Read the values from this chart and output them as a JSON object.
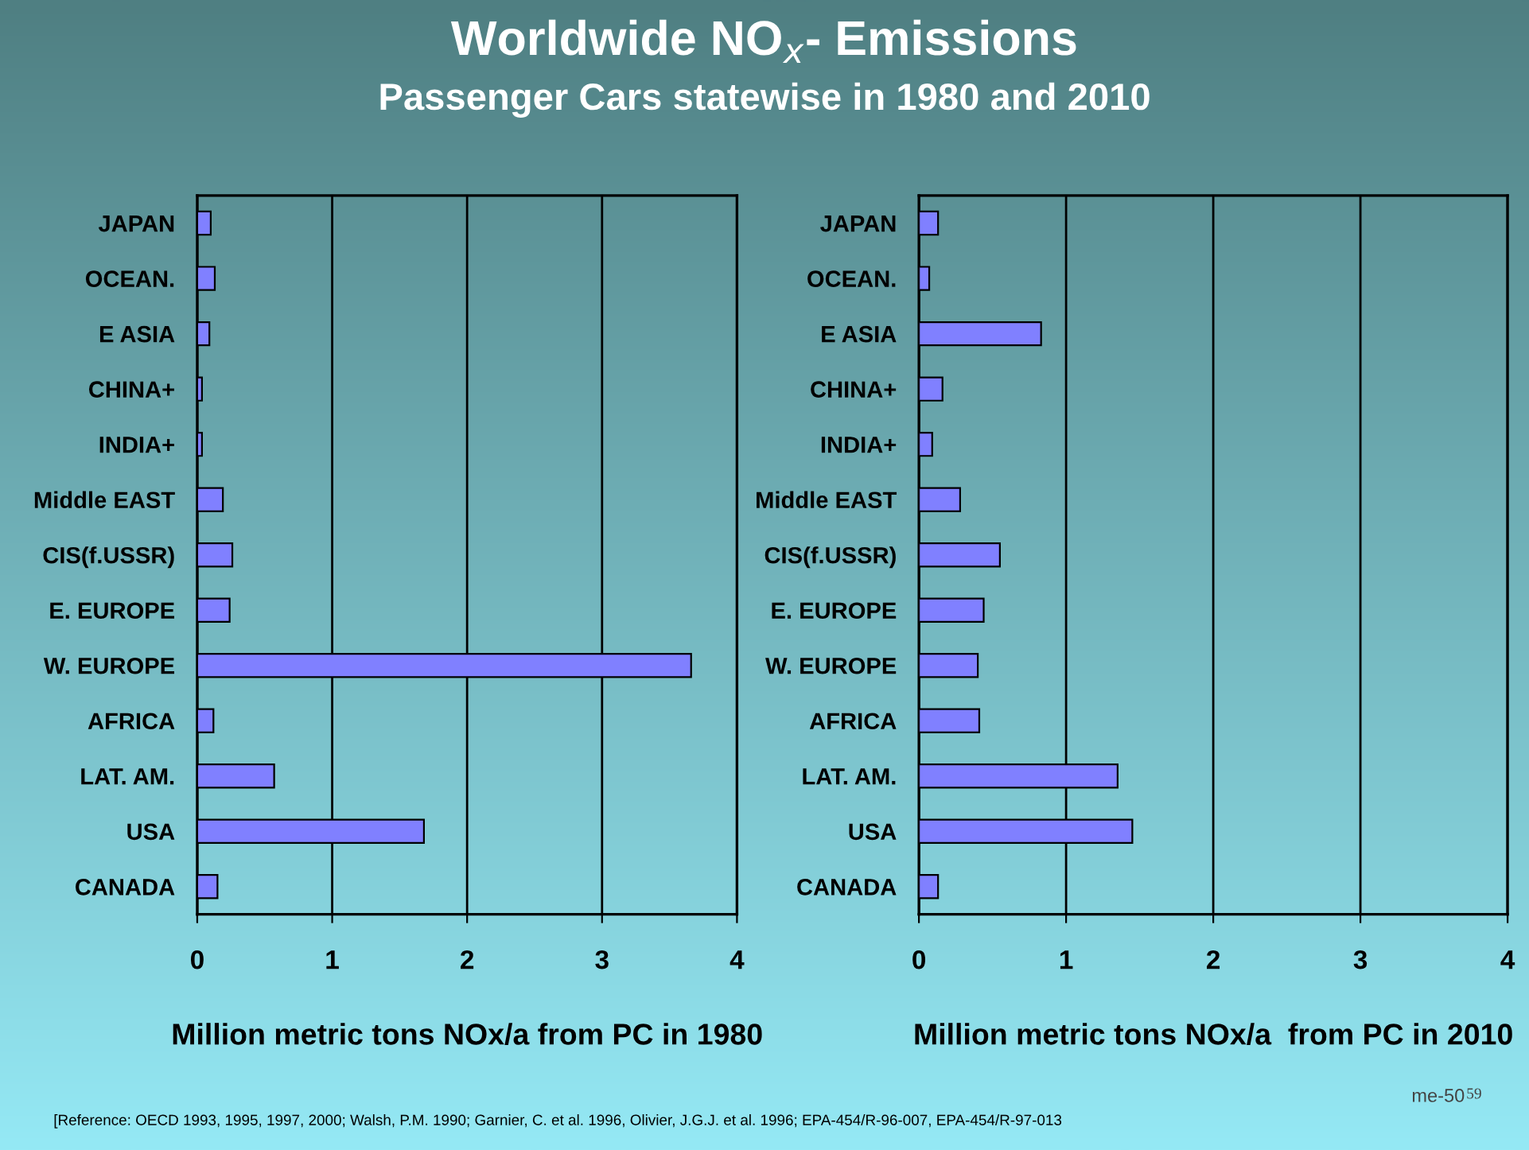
{
  "chart_data": [
    {
      "type": "bar",
      "orientation": "horizontal",
      "title": "Worldwide NO$_{x}$- Emissions",
      "subtitle": "Passenger Cars statewise in 1980 and 2010",
      "categories": [
        "JAPAN",
        "OCEAN.",
        "E ASIA",
        "CHINA+",
        "INDIA+",
        "Middle EAST",
        "CIS(f.USSR)",
        "E. EUROPE",
        "W. EUROPE",
        "AFRICA",
        "LAT. AM.",
        "USA",
        "CANADA"
      ],
      "values": [
        0.1,
        0.13,
        0.09,
        0.035,
        0.035,
        0.19,
        0.26,
        0.24,
        3.66,
        0.12,
        0.57,
        1.68,
        0.15
      ],
      "color": "#8080ff",
      "xlim": [
        0,
        4
      ],
      "xticks": [
        0,
        1,
        2,
        3,
        4
      ],
      "grid": "x",
      "xlabel": "Million metric tons NOx/a from PC in 1980"
    },
    {
      "type": "bar",
      "orientation": "horizontal",
      "categories": [
        "JAPAN",
        "OCEAN.",
        "E ASIA",
        "CHINA+",
        "INDIA+",
        "Middle EAST",
        "CIS(f.USSR)",
        "E. EUROPE",
        "W. EUROPE",
        "AFRICA",
        "LAT. AM.",
        "USA",
        "CANADA"
      ],
      "values": [
        0.13,
        0.07,
        0.83,
        0.16,
        0.09,
        0.28,
        0.55,
        0.44,
        0.4,
        0.41,
        1.35,
        1.45,
        0.13
      ],
      "color": "#8080ff",
      "xlim": [
        0,
        4
      ],
      "xticks": [
        0,
        1,
        2,
        3,
        4
      ],
      "grid": "x",
      "xlabel": "Million metric tons NOx/a  from PC in 2010",
      "annotations": [
        "[Reference: OECD 1993, 1995, 1997, 2000; Walsh, P.M. 1990; Garnier, C. et al. 1996, Olivier, J.G.J. et al. 1996; EPA-454/R-96-007, EPA-454/R-97-013",
        "me-50",
        "59"
      ]
    }
  ]
}
